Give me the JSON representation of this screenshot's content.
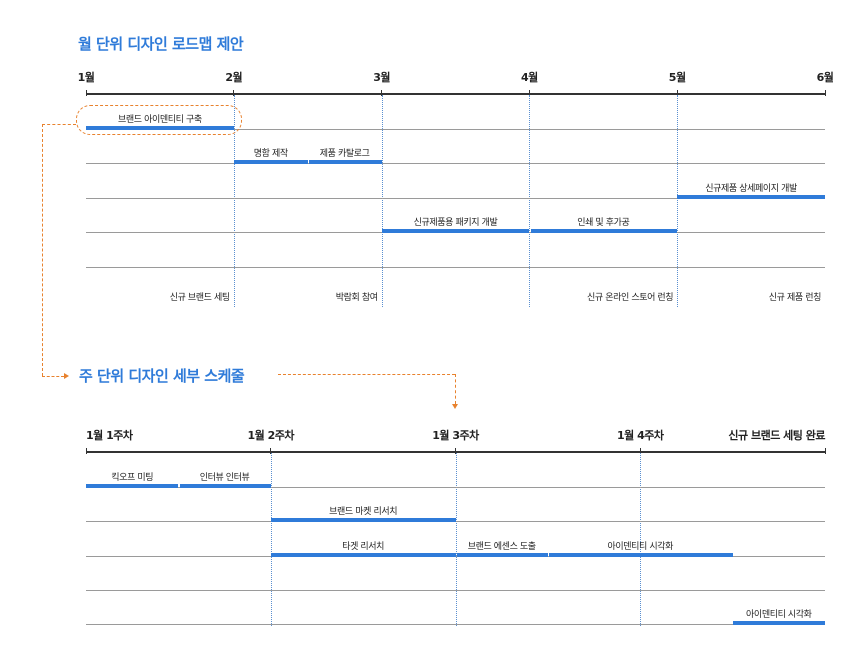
{
  "monthly": {
    "title": "월 단위 디자인 로드맵 제안",
    "months": [
      "1월",
      "2월",
      "3월",
      "4월",
      "5월",
      "6월"
    ],
    "tasks": [
      {
        "label": "브랜드 아이덴티티 구축",
        "start": 0,
        "end": 1,
        "row": 0,
        "highlighted": true
      },
      {
        "label": "명함 제작",
        "start": 1,
        "end": 1.5,
        "row": 1
      },
      {
        "label": "제품 카탈로그",
        "start": 1.5,
        "end": 2,
        "row": 1
      },
      {
        "label": "신규제품 상세페이지 개발",
        "start": 4,
        "end": 5,
        "row": 2
      },
      {
        "label": "신규제품용 패키지 개발",
        "start": 2,
        "end": 3,
        "row": 3
      },
      {
        "label": "인쇄 및 후가공",
        "start": 3,
        "end": 4,
        "row": 3
      }
    ],
    "milestones": [
      {
        "label": "신규 브랜드 세팅",
        "at": 1
      },
      {
        "label": "박람회 참여",
        "at": 2
      },
      {
        "label": "신규 온라인 스토어 런칭",
        "at": 4
      },
      {
        "label": "신규 제품 런칭",
        "at": 5
      }
    ]
  },
  "weekly": {
    "title": "주 단위 디자인 세부 스케줄",
    "weeks": [
      "1월 1주차",
      "1월 2주차",
      "1월 3주차",
      "1월 4주차",
      "신규 브랜드 세팅 완료"
    ],
    "tasks": [
      {
        "label": "킥오프 미팅",
        "start": 0,
        "end": 0.5,
        "row": 0
      },
      {
        "label": "인터뷰 인터뷰",
        "start": 0.5,
        "end": 1,
        "row": 0
      },
      {
        "label": "브랜드 마켓 리서치",
        "start": 1,
        "end": 2,
        "row": 1
      },
      {
        "label": "타겟 리서치",
        "start": 1,
        "end": 2,
        "row": 2
      },
      {
        "label": "브랜드 에센스 도출",
        "start": 2,
        "end": 2.5,
        "row": 2
      },
      {
        "label": "아이덴티티 시각화",
        "start": 2.5,
        "end": 3.5,
        "row": 2
      },
      {
        "label": "아이덴티티 시각화",
        "start": 3.5,
        "end": 4,
        "row": 4
      }
    ]
  },
  "colors": {
    "accent": "#2f7bd9",
    "connector": "#e8822e"
  }
}
